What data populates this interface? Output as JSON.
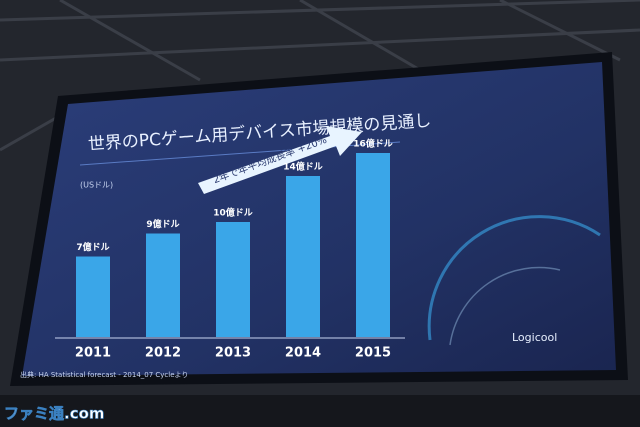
{
  "chart_data": {
    "type": "bar",
    "title": "世界のPCゲーム用デバイス市場規模の見通し",
    "unit_label": "(USドル)",
    "annotation": "2年で年平均成長率 +20%",
    "categories": [
      "2011",
      "2012",
      "2013",
      "2014",
      "2015"
    ],
    "values": [
      7,
      9,
      10,
      14,
      16
    ],
    "value_labels": [
      "7億ドル",
      "9億ドル",
      "10億ドル",
      "14億ドル",
      "16億ドル"
    ],
    "color": "#3aa6e8",
    "source": "出典: HA Statistical forecast - 2014_07 Cycleより",
    "logo": "Logicool",
    "watermark": "ファミ通.com"
  }
}
